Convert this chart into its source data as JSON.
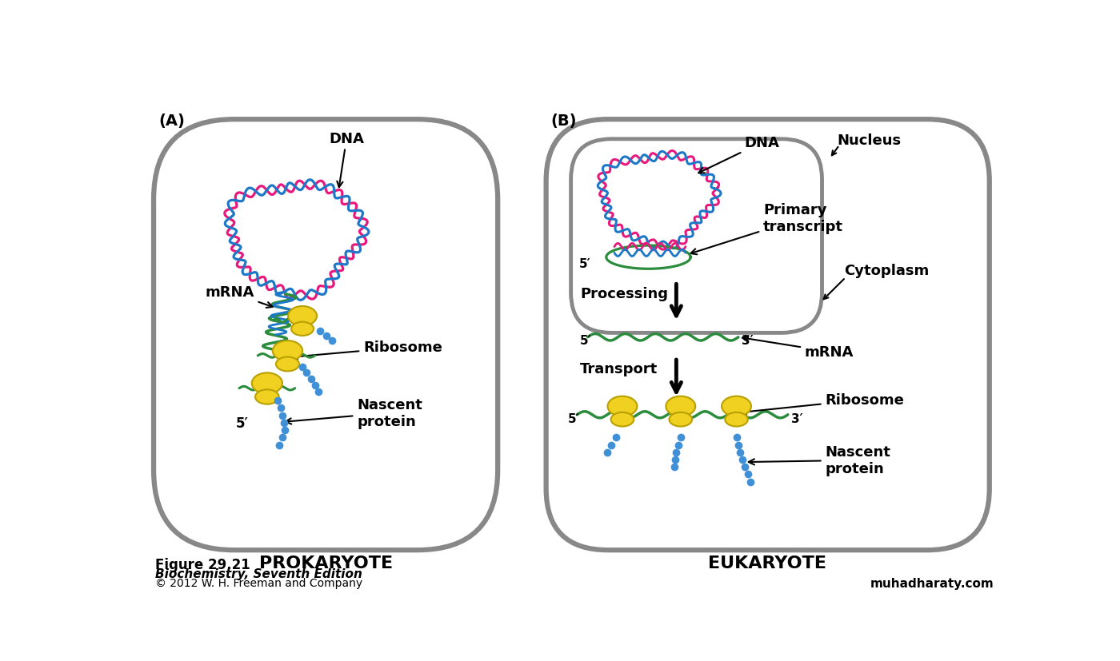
{
  "bg_color": "#ffffff",
  "cell_outline_color": "#888888",
  "dna_pink": "#e8197c",
  "dna_blue": "#1e78c8",
  "mrna_green": "#2a8c3c",
  "ribosome_yellow": "#f0d020",
  "ribosome_outline": "#b8a000",
  "protein_blue": "#4090d8",
  "arrow_color": "#000000",
  "label_A": "(A)",
  "label_B": "(B)",
  "prokaryote_label": "PROKARYOTE",
  "eukaryote_label": "EUKARYOTE",
  "fig_label": "Figure 29.21",
  "fig_subtitle": "Biochemistry, Seventh Edition",
  "fig_copyright": "© 2012 W. H. Freeman and Company",
  "watermark": "muhadharaty.com",
  "text_dna_A": "DNA",
  "text_dna_B": "DNA",
  "text_mrna_A": "mRNA",
  "text_mrna_B": "mRNA",
  "text_ribosome_A": "Ribosome",
  "text_ribosome_B": "Ribosome",
  "text_nascent_A": "Nascent\nprotein",
  "text_nascent_B": "Nascent\nprotein",
  "text_nucleus": "Nucleus",
  "text_cytoplasm": "Cytoplasm",
  "text_primary": "Primary\ntranscript",
  "text_processing": "Processing",
  "text_transport": "Transport",
  "text_5prime_A": "5′",
  "text_5prime_B1": "5′",
  "text_5prime_B2": "5′",
  "text_5prime_B3": "5′",
  "text_3prime_B1": "3′",
  "text_3prime_B2": "3′"
}
